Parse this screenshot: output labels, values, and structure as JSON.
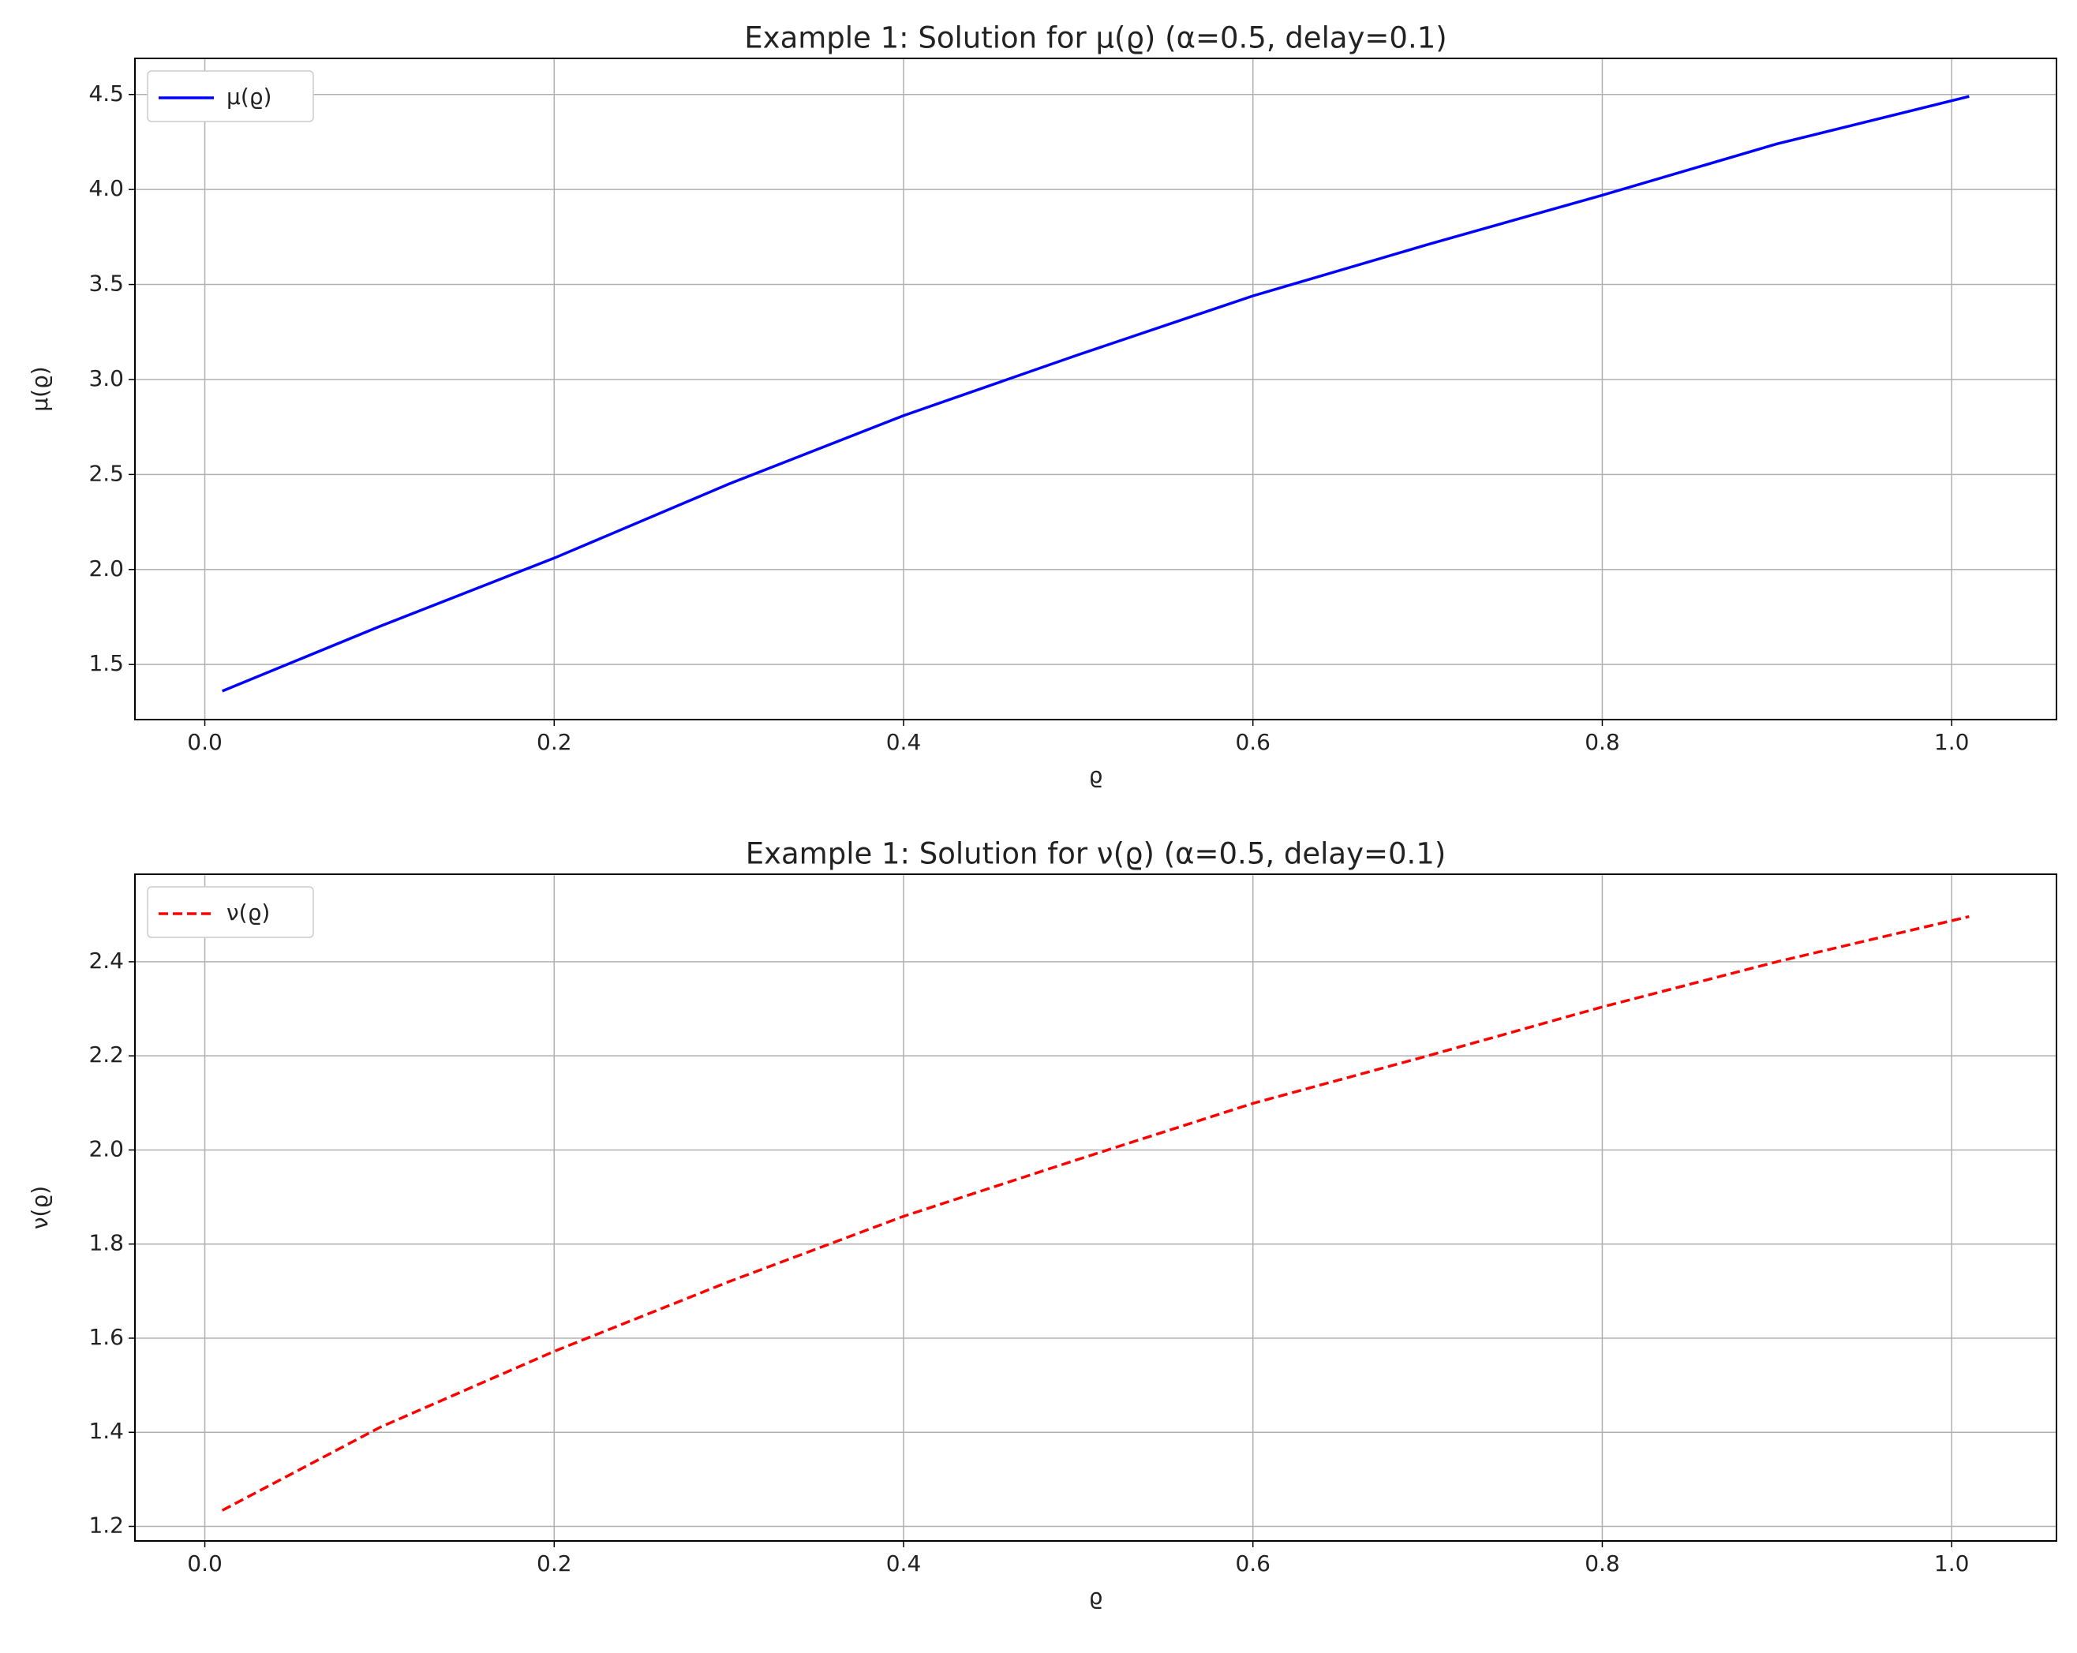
{
  "chart_data": [
    {
      "type": "line",
      "title": "Example 1: Solution for μ(ϱ) (α=0.5, delay=0.1)",
      "xlabel": "ϱ",
      "ylabel": "μ(ϱ)",
      "x": [
        0.01,
        0.1,
        0.2,
        0.3,
        0.4,
        0.5,
        0.6,
        0.7,
        0.8,
        0.9,
        1.01
      ],
      "series": [
        {
          "name": "μ(ϱ)",
          "color": "#0000ff",
          "line_style": "solid",
          "values": [
            1.36,
            1.7,
            2.06,
            2.45,
            2.81,
            3.13,
            3.44,
            3.71,
            3.97,
            4.24,
            4.49
          ]
        }
      ],
      "xlim": [
        -0.04,
        1.06
      ],
      "xticks": [
        {
          "value": 0,
          "label": "0.0"
        },
        0.2,
        0.4,
        0.6,
        0.8,
        {
          "value": 1,
          "label": "1.0"
        }
      ],
      "ylim": [
        1.21,
        4.69
      ],
      "yticks": [
        1.5,
        {
          "value": 2,
          "label": "2.0"
        },
        2.5,
        {
          "value": 3,
          "label": "3.0"
        },
        3.5,
        {
          "value": 4,
          "label": "4.0"
        },
        4.5
      ],
      "grid": true,
      "legend": "upper left"
    },
    {
      "type": "line",
      "title": "Example 1: Solution for ν(ϱ) (α=0.5, delay=0.1)",
      "xlabel": "ϱ",
      "ylabel": "ν(ϱ)",
      "x": [
        0.01,
        0.1,
        0.2,
        0.3,
        0.4,
        0.5,
        0.6,
        0.7,
        0.8,
        0.9,
        1.01
      ],
      "series": [
        {
          "name": "ν(ϱ)",
          "color": "#ff0000",
          "line_style": "dashed",
          "values": [
            1.234,
            1.41,
            1.572,
            1.72,
            1.859,
            1.98,
            2.099,
            2.2,
            2.304,
            2.4,
            2.496
          ]
        }
      ],
      "xlim": [
        -0.04,
        1.06
      ],
      "xticks": [
        {
          "value": 0,
          "label": "0.0"
        },
        0.2,
        0.4,
        0.6,
        0.8,
        {
          "value": 1,
          "label": "1.0"
        }
      ],
      "ylim": [
        1.169,
        2.586
      ],
      "yticks": [
        1.2,
        1.4,
        1.6,
        1.8,
        {
          "value": 2,
          "label": "2.0"
        },
        2.2,
        2.4
      ],
      "grid": true,
      "legend": "upper left"
    }
  ]
}
